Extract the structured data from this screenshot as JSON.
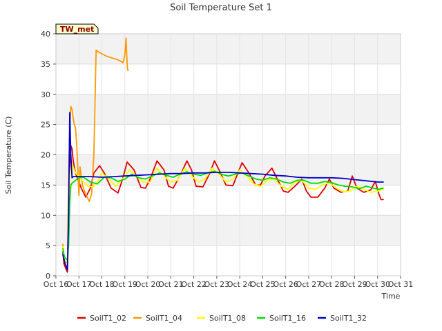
{
  "chart_data": {
    "type": "line",
    "title": "Soil Temperature Set 1",
    "xlabel": "Time",
    "ylabel": "Soil Temperature (C)",
    "badge": "TW_met",
    "x_ticks": [
      "Oct 16",
      "Oct 17",
      "Oct 18",
      "Oct 19",
      "Oct 20",
      "Oct 21",
      "Oct 22",
      "Oct 23",
      "Oct 24",
      "Oct 25",
      "Oct 26",
      "Oct 27",
      "Oct 28",
      "Oct 29",
      "Oct 30",
      "Oct 31"
    ],
    "x_range_days": [
      16,
      31
    ],
    "ylim": [
      0,
      40
    ],
    "y_ticks": [
      0,
      5,
      10,
      15,
      20,
      25,
      30,
      35,
      40
    ],
    "grid": true,
    "legend_position": "bottom",
    "series": [
      {
        "name": "SoilT1_02",
        "color": "#dd0000",
        "x": [
          16.3,
          16.35,
          16.4,
          16.45,
          16.5,
          16.55,
          16.6,
          16.65,
          16.7,
          16.75,
          16.85,
          16.95,
          17.1,
          17.3,
          17.5,
          17.65,
          17.9,
          18.1,
          18.4,
          18.7,
          18.9,
          19.1,
          19.4,
          19.7,
          19.9,
          20.1,
          20.4,
          20.7,
          20.9,
          21.1,
          21.4,
          21.7,
          21.9,
          22.1,
          22.4,
          22.7,
          22.9,
          23.1,
          23.4,
          23.7,
          23.9,
          24.1,
          24.4,
          24.7,
          24.9,
          25.1,
          25.4,
          25.7,
          25.9,
          26.1,
          26.4,
          26.7,
          26.9,
          27.1,
          27.4,
          27.7,
          27.9,
          28.1,
          28.4,
          28.7,
          28.9,
          29.1,
          29.4,
          29.7,
          29.9,
          30.05,
          30.15,
          30.25
        ],
        "y": [
          4.0,
          2.0,
          1.5,
          1.0,
          0.6,
          8.0,
          18.0,
          21.5,
          21.0,
          19.0,
          17.0,
          16.0,
          14.5,
          13.0,
          14.5,
          17.0,
          18.2,
          17.0,
          14.5,
          13.7,
          16.0,
          18.8,
          17.5,
          14.6,
          14.5,
          16.0,
          19.0,
          17.5,
          14.8,
          14.5,
          16.5,
          19.0,
          17.5,
          14.8,
          14.7,
          17.0,
          19.0,
          17.5,
          15.0,
          14.9,
          16.8,
          18.7,
          17.0,
          15.0,
          15.0,
          16.5,
          17.8,
          15.5,
          14.0,
          13.8,
          14.8,
          16.0,
          14.0,
          13.0,
          13.0,
          14.5,
          16.0,
          14.5,
          13.8,
          14.0,
          16.5,
          14.5,
          13.8,
          14.2,
          15.6,
          13.6,
          12.6,
          12.6
        ]
      },
      {
        "name": "SoilT1_04",
        "color": "#ff9900",
        "x": [
          16.3,
          16.35,
          16.4,
          16.5,
          16.55,
          16.6,
          16.65,
          16.7,
          16.75,
          16.8,
          16.85,
          16.9,
          16.95,
          17.0,
          17.05,
          17.15,
          17.3,
          17.45,
          17.55,
          17.65,
          17.75,
          17.85,
          18.0,
          18.2,
          18.45,
          18.7,
          18.85,
          18.92,
          19.0,
          19.05,
          19.1,
          19.12,
          19.15
        ],
        "y": [
          5.2,
          3.2,
          2.5,
          2.0,
          15.0,
          24.5,
          28.0,
          27.5,
          26.0,
          25.0,
          24.5,
          22.0,
          18.0,
          13.3,
          18.0,
          15.0,
          13.5,
          12.3,
          13.5,
          20.0,
          37.3,
          37.0,
          36.7,
          36.3,
          36.0,
          35.7,
          35.4,
          35.2,
          36.5,
          39.3,
          35.0,
          34.0,
          34.0
        ]
      },
      {
        "name": "SoilT1_08",
        "color": "#ffff00",
        "x": [
          16.3,
          16.35,
          16.4,
          16.45,
          16.5,
          16.55,
          16.6,
          16.65,
          16.7,
          16.75,
          16.85,
          17.0,
          17.2,
          17.4,
          17.6,
          17.8,
          18.0,
          18.3,
          18.6,
          18.9,
          19.2,
          19.5,
          19.8,
          20.1,
          20.4,
          20.7,
          21.0,
          21.3,
          21.6,
          21.9,
          22.2,
          22.5,
          22.8,
          23.1,
          23.4,
          23.7,
          24.0,
          24.3,
          24.6,
          24.9,
          25.2,
          25.5,
          25.8,
          26.1,
          26.4,
          26.7,
          27.0,
          27.3,
          27.6,
          27.9,
          28.2,
          28.5,
          28.8,
          29.1,
          29.4,
          29.7,
          30.0,
          30.25
        ],
        "y": [
          4.8,
          3.0,
          2.5,
          2.0,
          1.8,
          8.0,
          16.0,
          18.0,
          18.5,
          18.0,
          17.0,
          16.5,
          15.5,
          14.8,
          14.7,
          15.5,
          17.0,
          16.0,
          14.8,
          16.0,
          17.5,
          16.5,
          15.5,
          15.5,
          17.8,
          16.5,
          15.5,
          15.8,
          17.8,
          16.5,
          15.5,
          16.0,
          17.8,
          16.8,
          15.5,
          16.0,
          17.5,
          16.5,
          15.2,
          14.8,
          15.8,
          16.0,
          14.8,
          14.3,
          15.5,
          15.8,
          14.5,
          14.3,
          15.0,
          15.4,
          14.5,
          13.9,
          14.0,
          14.8,
          14.3,
          13.8,
          14.0,
          14.3
        ]
      },
      {
        "name": "SoilT1_16",
        "color": "#00dd00",
        "x": [
          16.3,
          16.35,
          16.4,
          16.45,
          16.5,
          16.55,
          16.6,
          16.65,
          16.7,
          16.8,
          17.0,
          17.2,
          17.5,
          17.8,
          18.1,
          18.4,
          18.7,
          19.0,
          19.3,
          19.6,
          19.9,
          20.2,
          20.5,
          20.8,
          21.1,
          21.4,
          21.7,
          22.0,
          22.3,
          22.6,
          22.9,
          23.2,
          23.5,
          23.8,
          24.1,
          24.4,
          24.7,
          25.0,
          25.3,
          25.6,
          25.9,
          26.2,
          26.5,
          26.8,
          27.1,
          27.4,
          27.7,
          28.0,
          28.3,
          28.6,
          28.9,
          29.2,
          29.5,
          29.8,
          30.05,
          30.25
        ],
        "y": [
          4.5,
          3.5,
          3.0,
          2.8,
          2.6,
          5.0,
          12.0,
          15.0,
          15.3,
          15.6,
          16.2,
          16.3,
          15.5,
          15.2,
          16.3,
          16.2,
          15.6,
          16.0,
          16.8,
          16.2,
          16.0,
          16.5,
          17.0,
          16.6,
          16.3,
          16.8,
          17.2,
          16.8,
          16.6,
          17.0,
          17.3,
          16.8,
          16.5,
          16.8,
          17.0,
          16.5,
          16.0,
          15.8,
          16.2,
          16.0,
          15.5,
          15.3,
          15.8,
          15.8,
          15.3,
          15.3,
          15.6,
          15.4,
          15.0,
          14.8,
          14.7,
          14.4,
          14.8,
          14.5,
          14.3,
          14.5
        ]
      },
      {
        "name": "SoilT1_32",
        "color": "#0000cc",
        "x": [
          16.3,
          16.35,
          16.4,
          16.45,
          16.5,
          16.55,
          16.6,
          16.65,
          16.7,
          16.75,
          17.0,
          17.5,
          18.0,
          18.5,
          19.0,
          19.5,
          20.0,
          20.5,
          21.0,
          21.5,
          22.0,
          22.5,
          23.0,
          23.5,
          24.0,
          24.5,
          25.0,
          25.5,
          26.0,
          26.5,
          27.0,
          27.5,
          28.0,
          28.5,
          29.0,
          29.5,
          30.0,
          30.25
        ],
        "y": [
          3.5,
          2.8,
          2.0,
          1.5,
          1.0,
          10.0,
          27.0,
          20.0,
          16.2,
          16.4,
          16.4,
          16.4,
          16.3,
          16.4,
          16.5,
          16.6,
          16.7,
          16.8,
          16.9,
          16.9,
          17.0,
          17.0,
          17.1,
          17.1,
          17.0,
          16.9,
          16.8,
          16.6,
          16.5,
          16.3,
          16.2,
          16.2,
          16.2,
          16.1,
          15.9,
          15.7,
          15.5,
          15.5
        ]
      }
    ]
  }
}
